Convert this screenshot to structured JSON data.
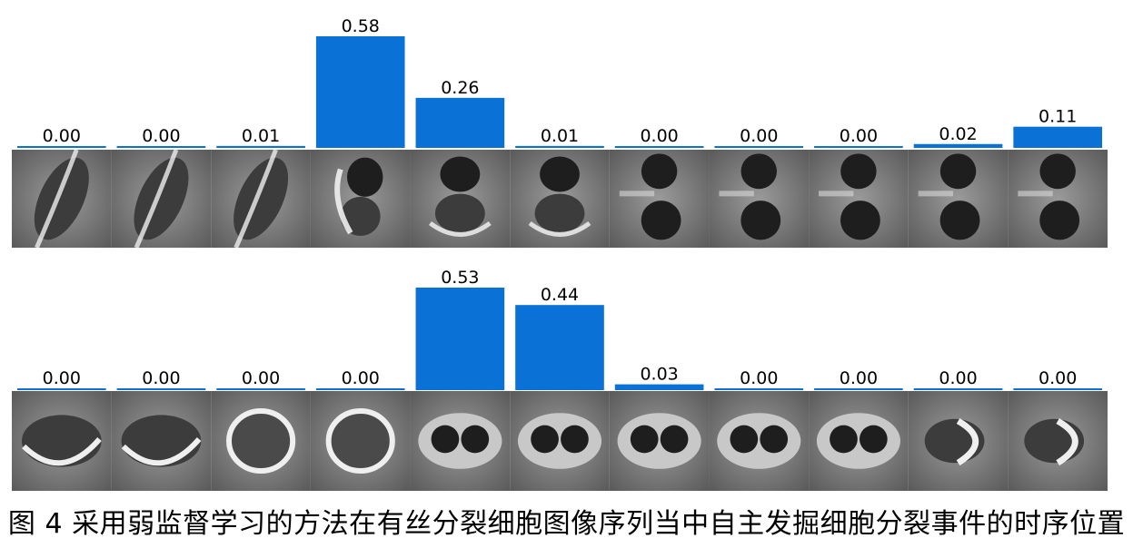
{
  "figure": {
    "caption": "图 4 采用弱监督学习的方法在有丝分裂细胞图像序列当中自主发掘细胞分裂事件的时序位置"
  },
  "colors": {
    "bar": "#0a72d6",
    "bar_label": "#000000",
    "cell_background": "#8e8e8e"
  },
  "chart_data": [
    {
      "type": "bar",
      "categories": [
        "",
        "",
        "",
        "",
        "",
        "",
        "",
        "",
        "",
        "",
        ""
      ],
      "values": [
        0.0,
        0.0,
        0.01,
        0.58,
        0.26,
        0.01,
        0.0,
        0.0,
        0.0,
        0.02,
        0.11
      ],
      "labels": [
        "0.00",
        "0.00",
        "0.01",
        "0.58",
        "0.26",
        "0.01",
        "0.00",
        "0.00",
        "0.00",
        "0.02",
        "0.11"
      ],
      "ylim": [
        0,
        0.58
      ]
    },
    {
      "type": "bar",
      "categories": [
        "",
        "",
        "",
        "",
        "",
        "",
        "",
        "",
        "",
        "",
        ""
      ],
      "values": [
        0.0,
        0.0,
        0.0,
        0.0,
        0.53,
        0.44,
        0.03,
        0.0,
        0.0,
        0.0,
        0.0
      ],
      "labels": [
        "0.00",
        "0.00",
        "0.00",
        "0.00",
        "0.53",
        "0.44",
        "0.03",
        "0.00",
        "0.00",
        "0.00",
        "0.00"
      ],
      "ylim": [
        0,
        0.53
      ]
    }
  ]
}
